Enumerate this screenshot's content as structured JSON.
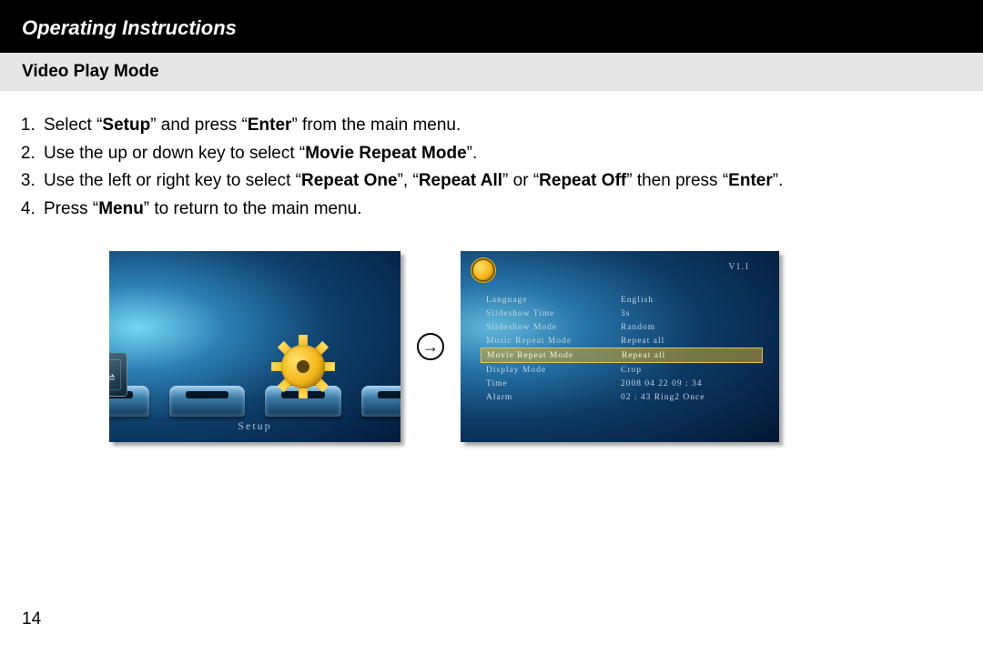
{
  "header": {
    "title": "Operating Instructions"
  },
  "subheader": {
    "title": "Video Play Mode"
  },
  "steps": {
    "s1_a": "Select “",
    "s1_b": "Setup",
    "s1_c": "” and press “",
    "s1_d": "Enter",
    "s1_e": "” from the main menu.",
    "s2_a": "Use the up or down key to select “",
    "s2_b": "Movie Repeat Mode",
    "s2_c": "”.",
    "s3_a": "Use the left or right key to select “",
    "s3_b": "Repeat One",
    "s3_c": "”, “",
    "s3_d": "Repeat All",
    "s3_e": "” or “",
    "s3_f": "Repeat Off",
    "s3_g": "” then press “",
    "s3_h": "Enter",
    "s3_i": "”.",
    "s4_a": "Press “",
    "s4_b": "Menu",
    "s4_c": "” to return to the main menu."
  },
  "screen1": {
    "setup_label": "Setup",
    "colors": {
      "gear_light": "#ffe069",
      "gear_dark": "#f3b519",
      "dock_top": "#9cccec",
      "dock_bottom": "#0c3456"
    }
  },
  "arrow": "→",
  "screen2": {
    "version": "V1.1",
    "rows": [
      {
        "label": "Language",
        "value": "English",
        "hl": false
      },
      {
        "label": "Slideshow Time",
        "value": "3s",
        "hl": false
      },
      {
        "label": "Slideshow Mode",
        "value": "Random",
        "hl": false
      },
      {
        "label": "Music Repeat Mode",
        "value": "Repeat all",
        "hl": false
      },
      {
        "label": "Movie Repeat Mode",
        "value": "Repeat all",
        "hl": true
      },
      {
        "label": "Display Mode",
        "value": "Crop",
        "hl": false
      },
      {
        "label": "Time",
        "value": "2008  04 22  09 : 34",
        "hl": false
      },
      {
        "label": "Alarm",
        "value": "02 : 43   Ring2  Once",
        "hl": false
      }
    ],
    "highlight_bg": "rgba(205,170,50,0.55)"
  },
  "page_number": "14"
}
